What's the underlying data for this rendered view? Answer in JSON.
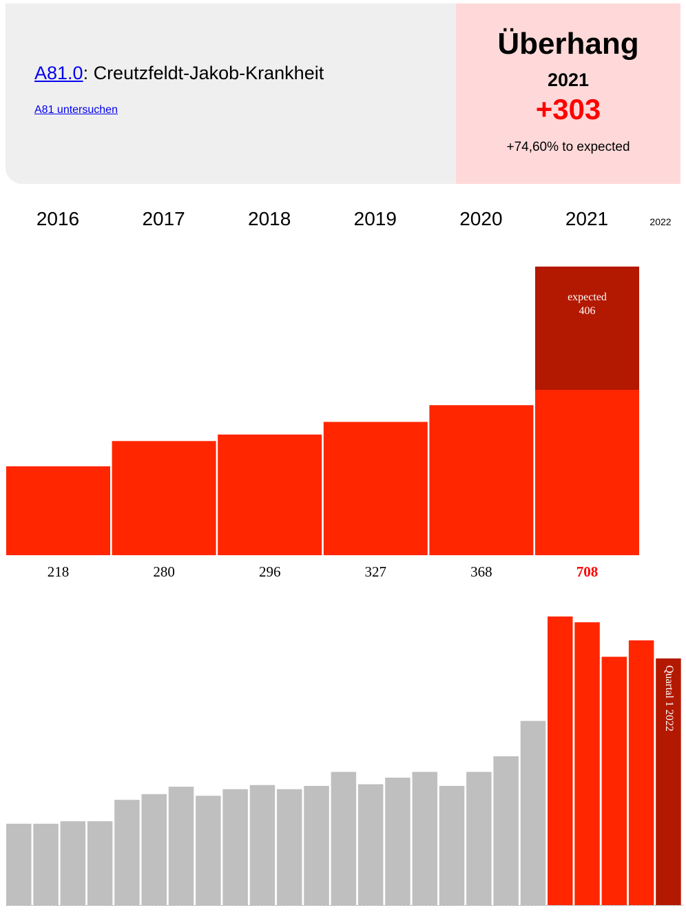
{
  "header": {
    "code_link": "A81.0",
    "code_title": ": Creutzfeldt-Jakob-Krankheit",
    "sub_link": "A81 untersuchen",
    "summary_title": "Überhang",
    "summary_year": "2021",
    "summary_delta": "+303",
    "summary_pct": "+74,60% to expected"
  },
  "colors": {
    "bar": "#ff2600",
    "expected": "#b31800",
    "quarter_gray": "#bfbfbf",
    "highlight_value": "#ff0000"
  },
  "chart_data": [
    {
      "type": "bar",
      "categories": [
        "2016",
        "2017",
        "2018",
        "2019",
        "2020",
        "2021"
      ],
      "extra_category": "2022",
      "values": [
        218,
        280,
        296,
        327,
        368,
        708
      ],
      "value_labels": [
        "218",
        "280",
        "296",
        "327",
        "368",
        "708"
      ],
      "expected": {
        "category": "2021",
        "label": "expected",
        "value": 406,
        "value_label": "406"
      },
      "highlight_index": 5,
      "ylim": [
        0,
        708
      ]
    },
    {
      "type": "bar",
      "values": [
        99,
        99,
        102,
        102,
        128,
        135,
        144,
        133,
        141,
        146,
        141,
        145,
        162,
        147,
        155,
        162,
        145,
        162,
        181,
        224,
        351,
        344,
        302,
        322,
        300
      ],
      "highlight_from_index": 20,
      "last_bar_label": "Quartal 1 2022",
      "ylim": [
        0,
        351
      ]
    }
  ]
}
